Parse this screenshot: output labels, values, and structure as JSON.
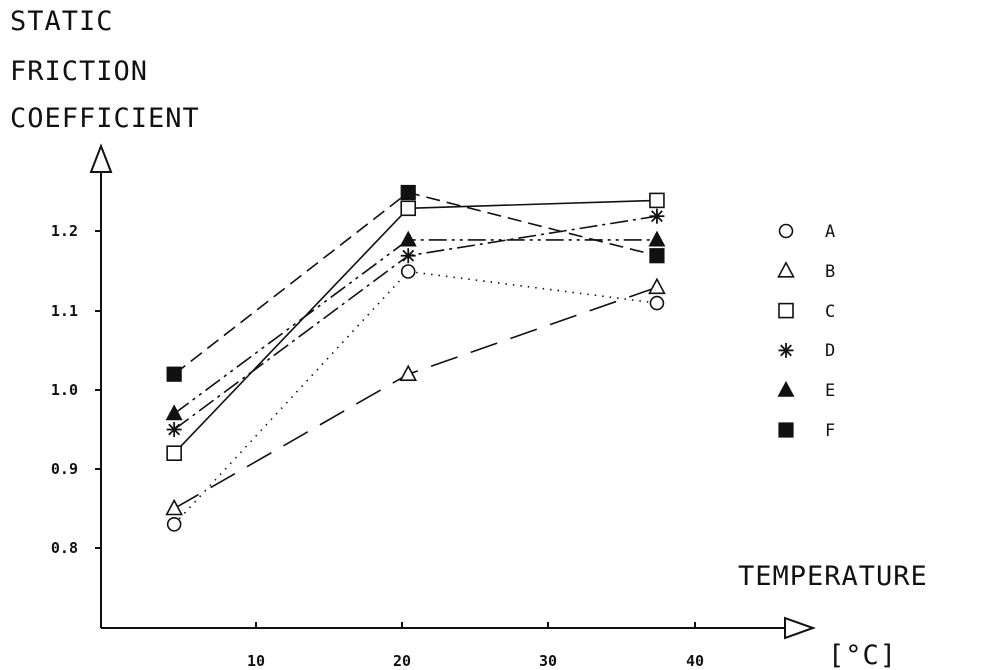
{
  "chart_data": {
    "type": "line",
    "ylabel_lines": [
      "STATIC",
      "FRICTION",
      "COEFFICIENT"
    ],
    "xlabel": "TEMPERATURE",
    "xunit": "[°C]",
    "x_ticks": [
      "10",
      "20",
      "30",
      "40"
    ],
    "y_ticks": [
      "0.8",
      "0.9",
      "1.0",
      "1.1",
      "1.2"
    ],
    "xlim": [
      0,
      48
    ],
    "ylim": [
      0.7,
      1.3
    ],
    "grid": false,
    "legend_position": "right",
    "x": [
      5,
      21,
      38
    ],
    "series": [
      {
        "name": "A",
        "marker": "circle-open",
        "line_style": "dotted",
        "values": [
          0.83,
          1.15,
          1.11
        ]
      },
      {
        "name": "B",
        "marker": "triangle-open",
        "line_style": "long-dash",
        "values": [
          0.85,
          1.02,
          1.13
        ]
      },
      {
        "name": "C",
        "marker": "square-open",
        "line_style": "solid",
        "values": [
          0.92,
          1.23,
          1.24
        ]
      },
      {
        "name": "D",
        "marker": "asterisk",
        "line_style": "dash-dot",
        "values": [
          0.95,
          1.17,
          1.22
        ]
      },
      {
        "name": "E",
        "marker": "triangle-filled",
        "line_style": "dash-dot-dot",
        "values": [
          0.97,
          1.19,
          1.19
        ]
      },
      {
        "name": "F",
        "marker": "square-filled",
        "line_style": "dashed",
        "values": [
          1.02,
          1.25,
          1.17
        ]
      }
    ]
  }
}
